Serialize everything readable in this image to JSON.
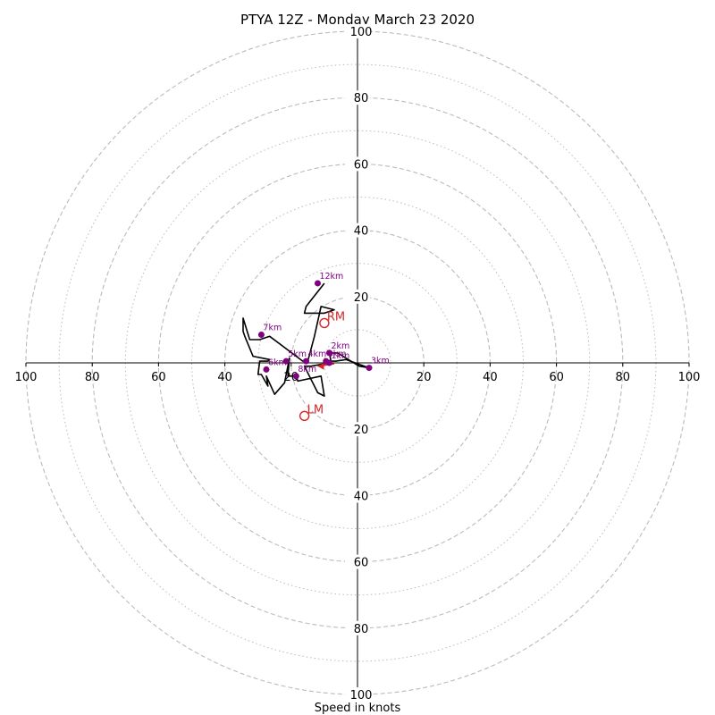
{
  "chart_data": {
    "type": "line",
    "title": "PTYA 12Z - Monday March 23 2020",
    "xlabel": "Speed in knots",
    "ylabel": "",
    "xlim": [
      -100,
      100
    ],
    "ylim": [
      -100,
      100
    ],
    "rings_major": [
      20,
      40,
      60,
      80,
      100
    ],
    "rings_minor": [
      10,
      30,
      50,
      70,
      90
    ],
    "ticks_x": [
      {
        "value": -100,
        "label": "100"
      },
      {
        "value": -80,
        "label": "80"
      },
      {
        "value": -60,
        "label": "60"
      },
      {
        "value": -40,
        "label": "40"
      },
      {
        "value": -20,
        "label": "20"
      },
      {
        "value": 20,
        "label": "20"
      },
      {
        "value": 40,
        "label": "40"
      },
      {
        "value": 60,
        "label": "60"
      },
      {
        "value": 80,
        "label": "80"
      },
      {
        "value": 100,
        "label": "100"
      }
    ],
    "ticks_y": [
      {
        "value": 100,
        "label": "100"
      },
      {
        "value": 80,
        "label": "80"
      },
      {
        "value": 60,
        "label": "60"
      },
      {
        "value": 40,
        "label": "40"
      },
      {
        "value": 20,
        "label": "20"
      },
      {
        "value": -20,
        "label": "20"
      },
      {
        "value": -40,
        "label": "40"
      },
      {
        "value": -60,
        "label": "60"
      },
      {
        "value": -80,
        "label": "80"
      },
      {
        "value": -100,
        "label": "100"
      }
    ],
    "hodograph": {
      "u": [
        -9.5,
        -6.5,
        -3.5,
        3.5,
        0.5,
        -6,
        -8.5,
        -8,
        -9,
        -9,
        -8.5,
        -14,
        -16,
        -12,
        -10,
        -11,
        -18,
        -18.5,
        -21,
        -20.5,
        -22,
        -25,
        -27.5,
        -27,
        -29,
        -30,
        -29.5,
        -27,
        -26.5,
        -31.5,
        -34,
        -34.5,
        -34.5,
        -32.5,
        -29.5,
        -26.5,
        -16.5,
        -15,
        -13,
        -11,
        -7,
        -10,
        -16,
        -15.5,
        -10
      ],
      "v": [
        0.5,
        0.5,
        1,
        -1.5,
        -1,
        3,
        3,
        0.5,
        0,
        0,
        0,
        -1,
        -1,
        -9,
        -10,
        -4,
        -5.5,
        -4,
        -4,
        1.5,
        -6,
        -9.5,
        -4,
        -7,
        -3.5,
        -3.5,
        0.5,
        0.5,
        1,
        2,
        8,
        9.5,
        13.5,
        7,
        7,
        8,
        0.5,
        0.5,
        8,
        17,
        16,
        15,
        15,
        17,
        24
      ]
    },
    "height_markers": [
      {
        "label": "0km",
        "u": -9.5,
        "v": 0.5
      },
      {
        "label": "1km",
        "u": -8.5,
        "v": 0
      },
      {
        "label": "2km",
        "u": -8.5,
        "v": 3
      },
      {
        "label": "3km",
        "u": 3.5,
        "v": -1.5
      },
      {
        "label": "4km",
        "u": -15.5,
        "v": 0.5
      },
      {
        "label": "5km",
        "u": -21.5,
        "v": 0.5
      },
      {
        "label": "6km",
        "u": -27.5,
        "v": -2
      },
      {
        "label": "7km",
        "u": -29,
        "v": 8.5
      },
      {
        "label": "8km",
        "u": -18.5,
        "v": -4
      },
      {
        "label": "12km",
        "u": -12,
        "v": 24
      }
    ],
    "storm_motion": [
      {
        "label": "RM",
        "u": -10,
        "v": 12
      },
      {
        "label": "LM",
        "u": -16,
        "v": -16
      }
    ],
    "mean_wind": {
      "u": -12,
      "v": -1
    },
    "colors": {
      "hodograph": "#000000",
      "marker": "#800080",
      "storm": "#d62728",
      "grid": "#bbbbbb"
    }
  }
}
